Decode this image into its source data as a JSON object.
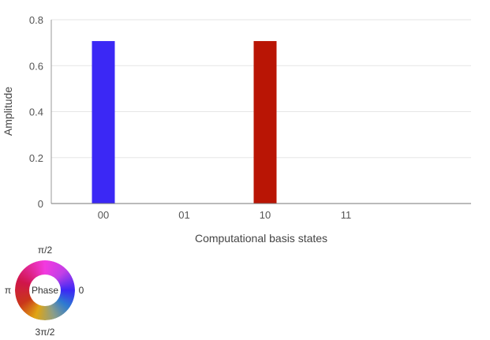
{
  "chart_data": {
    "type": "bar",
    "categories": [
      "00",
      "01",
      "10",
      "11"
    ],
    "values": [
      0.7071,
      0,
      0.7071,
      0
    ],
    "bar_colors": [
      "#3b28f5",
      "#3b28f5",
      "#b91505",
      "#3b28f5"
    ],
    "xlabel": "Computational basis states",
    "ylabel": "Amplitude",
    "ylim": [
      0,
      0.8
    ],
    "yticks": [
      "0",
      "0.2",
      "0.4",
      "0.6",
      "0.8"
    ],
    "grid": true
  },
  "phase_wheel": {
    "center_label": "Phase",
    "label_top": "π/2",
    "label_left": "π",
    "label_right": "0",
    "label_bottom": "3π/2"
  }
}
